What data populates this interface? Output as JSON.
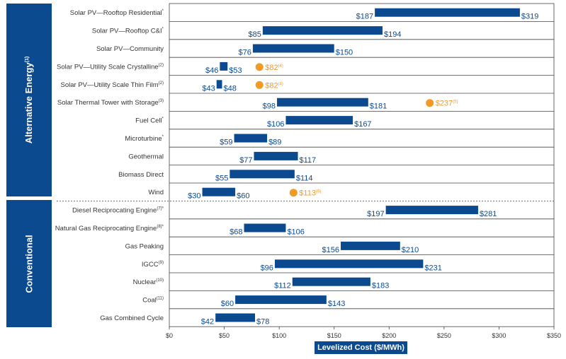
{
  "chart_data": {
    "type": "bar",
    "subtype": "floating-range",
    "xlabel": "Levelized Cost ($/MWh)",
    "xlim": [
      0,
      350
    ],
    "xticks": [
      "$0",
      "$50",
      "$100",
      "$150",
      "$200",
      "$250",
      "$300",
      "$350"
    ],
    "grid": false,
    "colors": {
      "bar": "#0b4a8f",
      "marker": "#f29a22",
      "group": "#0b4a8f",
      "tick_text": "#333333"
    },
    "groups": [
      {
        "label": "Alternative Energy",
        "sup": "(1)"
      },
      {
        "label": "Conventional",
        "sup": ""
      }
    ],
    "rows": [
      {
        "label": "Solar PV—Rooftop Residential",
        "sup": "*",
        "group": 0,
        "low": 187,
        "high": 319,
        "low_label": "$187",
        "high_label": "$319"
      },
      {
        "label": "Solar PV—Rooftop C&I",
        "sup": "*",
        "group": 0,
        "low": 85,
        "high": 194,
        "low_label": "$85",
        "high_label": "$194"
      },
      {
        "label": "Solar PV—Community",
        "sup": "",
        "group": 0,
        "low": 76,
        "high": 150,
        "low_label": "$76",
        "high_label": "$150"
      },
      {
        "label": "Solar PV—Utility Scale Crystalline",
        "sup": "(2)",
        "group": 0,
        "low": 46,
        "high": 53,
        "low_label": "$46",
        "high_label": "$53",
        "marker": 82,
        "marker_label": "$82",
        "marker_sup": "(4)"
      },
      {
        "label": "Solar PV—Utility Scale Thin Film",
        "sup": "(2)",
        "group": 0,
        "low": 43,
        "high": 48,
        "low_label": "$43",
        "high_label": "$48",
        "marker": 82,
        "marker_label": "$82",
        "marker_sup": "(4)"
      },
      {
        "label": "Solar Thermal Tower with Storage",
        "sup": "(3)",
        "group": 0,
        "low": 98,
        "high": 181,
        "low_label": "$98",
        "high_label": "$181",
        "marker": 237,
        "marker_label": "$237",
        "marker_sup": "(5)"
      },
      {
        "label": "Fuel Cell",
        "sup": "*",
        "group": 0,
        "low": 106,
        "high": 167,
        "low_label": "$106",
        "high_label": "$167"
      },
      {
        "label": "Microturbine",
        "sup": "*",
        "group": 0,
        "low": 59,
        "high": 89,
        "low_label": "$59",
        "high_label": "$89"
      },
      {
        "label": "Geothermal",
        "sup": "",
        "group": 0,
        "low": 77,
        "high": 117,
        "low_label": "$77",
        "high_label": "$117"
      },
      {
        "label": "Biomass Direct",
        "sup": "",
        "group": 0,
        "low": 55,
        "high": 114,
        "low_label": "$55",
        "high_label": "$114"
      },
      {
        "label": "Wind",
        "sup": "",
        "group": 0,
        "low": 30,
        "high": 60,
        "low_label": "$30",
        "high_label": "$60",
        "marker": 113,
        "marker_label": "$113",
        "marker_sup": "(6)"
      },
      {
        "label": "Diesel Reciprocating Engine",
        "sup": "(7)*",
        "group": 1,
        "low": 197,
        "high": 281,
        "low_label": "$197",
        "high_label": "$281"
      },
      {
        "label": "Natural Gas Reciprocating Engine",
        "sup": "(8)*",
        "group": 1,
        "low": 68,
        "high": 106,
        "low_label": "$68",
        "high_label": "$106"
      },
      {
        "label": "Gas Peaking",
        "sup": "",
        "group": 1,
        "low": 156,
        "high": 210,
        "low_label": "$156",
        "high_label": "$210"
      },
      {
        "label": "IGCC",
        "sup": "(9)",
        "group": 1,
        "low": 96,
        "high": 231,
        "low_label": "$96",
        "high_label": "$231"
      },
      {
        "label": "Nuclear",
        "sup": "(10)",
        "group": 1,
        "low": 112,
        "high": 183,
        "low_label": "$112",
        "high_label": "$183"
      },
      {
        "label": "Coal",
        "sup": "(11)",
        "group": 1,
        "low": 60,
        "high": 143,
        "low_label": "$60",
        "high_label": "$143"
      },
      {
        "label": "Gas Combined Cycle",
        "sup": "",
        "group": 1,
        "low": 42,
        "high": 78,
        "low_label": "$42",
        "high_label": "$78"
      }
    ]
  }
}
